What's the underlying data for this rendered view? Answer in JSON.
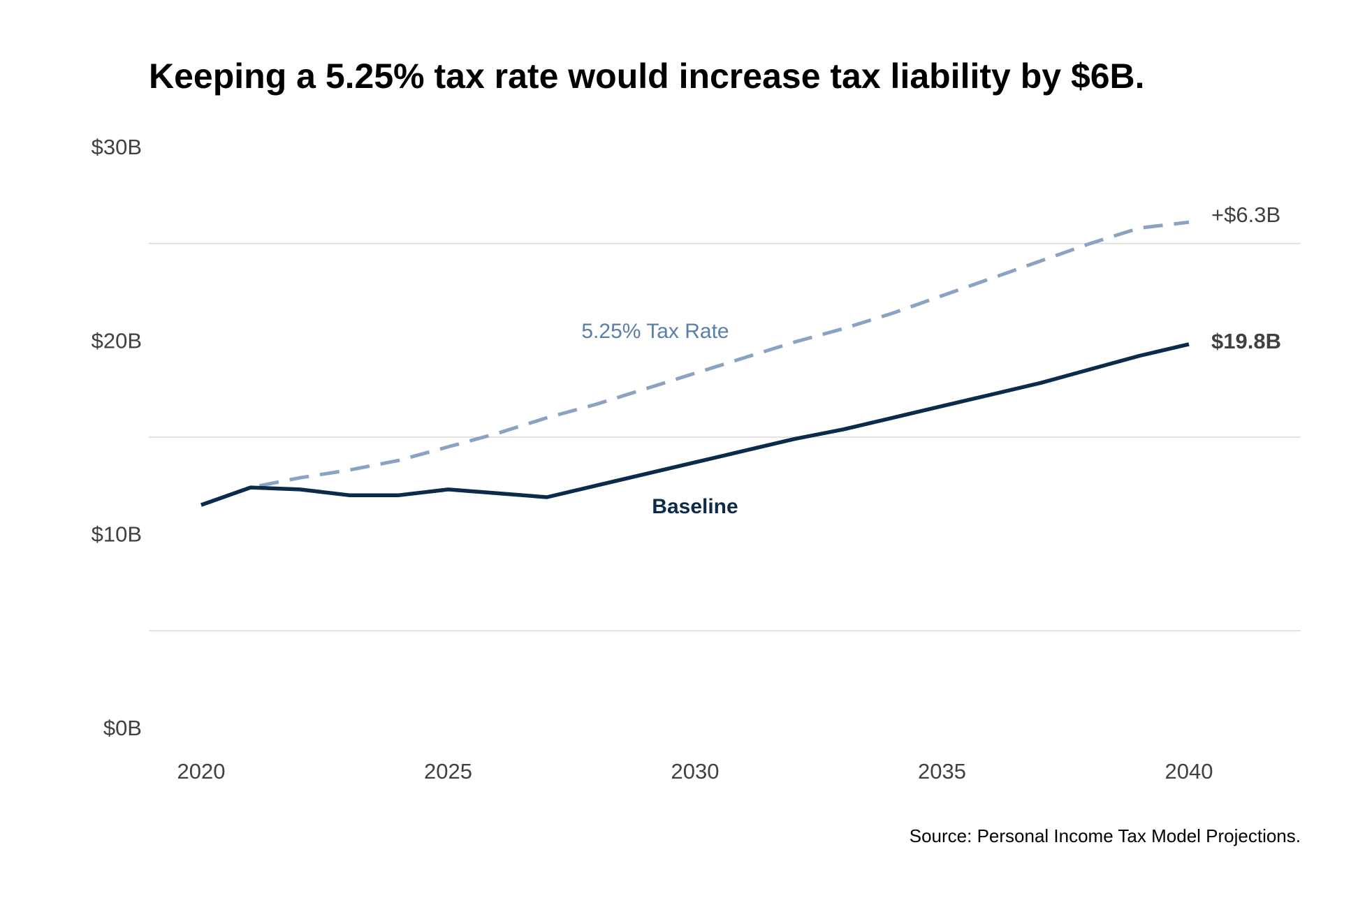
{
  "chart_data": {
    "type": "line",
    "title": "Keeping a 5.25% tax rate would increase tax liability by $6B.",
    "xlabel": "",
    "ylabel": "",
    "x": [
      2020,
      2021,
      2022,
      2023,
      2024,
      2025,
      2026,
      2027,
      2028,
      2029,
      2030,
      2031,
      2032,
      2033,
      2034,
      2035,
      2036,
      2037,
      2038,
      2039,
      2040
    ],
    "series": [
      {
        "name": "Baseline",
        "style": "solid",
        "color": "#0c2a4c",
        "values": [
          11.5,
          12.4,
          12.3,
          12.0,
          12.0,
          12.3,
          12.1,
          11.9,
          12.5,
          13.1,
          13.7,
          14.3,
          14.9,
          15.4,
          16.0,
          16.6,
          17.2,
          17.8,
          18.5,
          19.2,
          19.8
        ]
      },
      {
        "name": "5.25% Tax Rate",
        "style": "dashed",
        "color": "#8aa3c2",
        "values": [
          11.5,
          12.4,
          12.9,
          13.3,
          13.8,
          14.5,
          15.2,
          16.0,
          16.7,
          17.5,
          18.3,
          19.1,
          19.9,
          20.6,
          21.4,
          22.3,
          23.2,
          24.1,
          25.0,
          25.8,
          26.1
        ]
      }
    ],
    "ylim": [
      0,
      30
    ],
    "yticks": [
      0,
      10,
      20,
      30
    ],
    "ytick_labels": [
      "$0B",
      "$10B",
      "$20B",
      "$30B"
    ],
    "xticks": [
      2020,
      2025,
      2030,
      2035,
      2040
    ],
    "xtick_labels": [
      "2020",
      "2025",
      "2030",
      "2035",
      "2040"
    ],
    "gridlines_y": [
      5,
      15,
      25
    ],
    "grid": true,
    "legend": "none (direct labels)",
    "annotations": {
      "baseline_label": "Baseline",
      "tax_label": "5.25% Tax Rate",
      "end_value": "$19.8B",
      "end_diff": "+$6.3B"
    },
    "source": "Source: Personal Income Tax Model Projections."
  }
}
